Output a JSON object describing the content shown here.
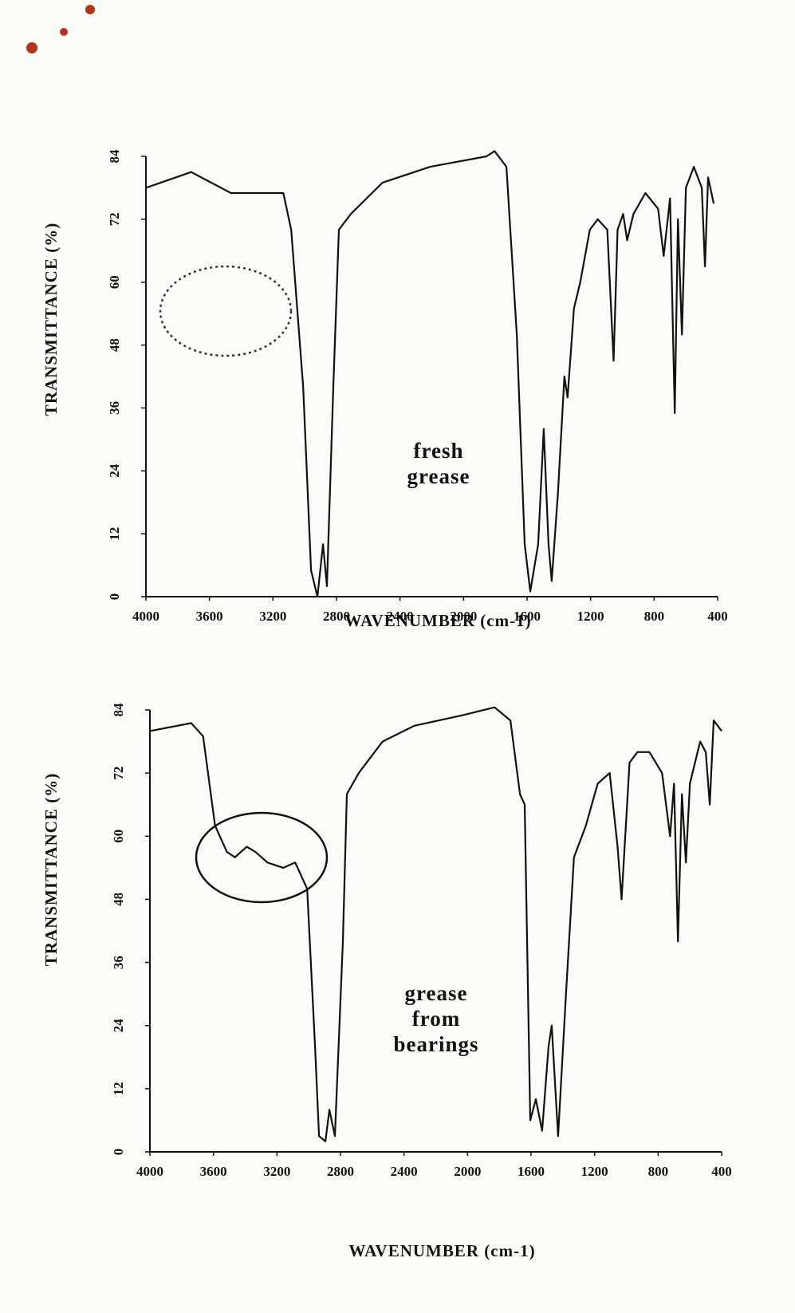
{
  "chart_data": [
    {
      "type": "line",
      "xlabel": "WAVENUMBER (cm-1)",
      "ylabel": "TRANSMITTANCE (%)",
      "annotation": [
        "fresh",
        "grease"
      ],
      "color": "#111111",
      "xlim": [
        4000,
        400
      ],
      "xticks": [
        4000,
        3600,
        3200,
        2800,
        2400,
        2000,
        1600,
        1200,
        800,
        400
      ],
      "ylim": [
        0,
        84
      ],
      "yticks": [
        0,
        12,
        24,
        36,
        48,
        60,
        72,
        84
      ],
      "x": [
        4000,
        3715,
        3465,
        3135,
        3085,
        3010,
        2960,
        2920,
        2885,
        2860,
        2820,
        2785,
        2710,
        2510,
        2210,
        1855,
        1805,
        1730,
        1665,
        1615,
        1580,
        1530,
        1495,
        1465,
        1445,
        1405,
        1365,
        1345,
        1305,
        1265,
        1205,
        1155,
        1095,
        1055,
        1030,
        995,
        970,
        930,
        855,
        775,
        740,
        700,
        670,
        650,
        625,
        600,
        550,
        500,
        480,
        460,
        425
      ],
      "values": [
        78,
        81,
        77,
        77,
        70,
        40,
        5,
        0,
        10,
        2,
        40,
        70,
        73,
        79,
        82,
        84,
        85,
        82,
        50,
        10,
        1,
        10,
        32,
        10,
        3,
        20,
        42,
        38,
        55,
        60,
        70,
        72,
        70,
        45,
        70,
        73,
        68,
        73,
        77,
        74,
        65,
        76,
        35,
        72,
        50,
        78,
        82,
        78,
        63,
        80,
        75
      ]
    },
    {
      "type": "line",
      "xlabel": "WAVENUMBER (cm-1)",
      "ylabel": "TRANSMITTANCE (%)",
      "annotation": [
        "grease",
        "from",
        "bearings"
      ],
      "color": "#111111",
      "xlim": [
        4000,
        400
      ],
      "xticks": [
        4000,
        3600,
        3200,
        2800,
        2400,
        2000,
        1600,
        1200,
        800,
        400
      ],
      "ylim": [
        0,
        84
      ],
      "yticks": [
        0,
        12,
        24,
        36,
        48,
        60,
        72,
        84
      ],
      "x": [
        4000,
        3740,
        3665,
        3590,
        3515,
        3465,
        3390,
        3335,
        3260,
        3160,
        3085,
        3010,
        2960,
        2935,
        2895,
        2870,
        2835,
        2785,
        2760,
        2685,
        2535,
        2335,
        2030,
        1830,
        1730,
        1670,
        1640,
        1605,
        1570,
        1530,
        1490,
        1470,
        1430,
        1380,
        1330,
        1255,
        1180,
        1105,
        1055,
        1030,
        980,
        930,
        855,
        775,
        725,
        700,
        675,
        650,
        625,
        600,
        535,
        500,
        475,
        450,
        400
      ],
      "values": [
        80,
        81.5,
        79,
        62,
        57,
        56,
        58,
        57,
        55,
        54,
        55,
        50,
        20,
        3,
        2,
        8,
        3,
        40,
        68,
        72,
        78,
        81,
        83,
        84.5,
        82,
        68,
        66,
        6,
        10,
        4,
        20,
        24,
        3,
        30,
        56,
        62,
        70,
        72,
        58,
        48,
        74,
        76,
        76,
        72,
        60,
        70,
        40,
        68,
        55,
        70,
        78,
        76,
        66,
        82,
        80
      ]
    }
  ]
}
